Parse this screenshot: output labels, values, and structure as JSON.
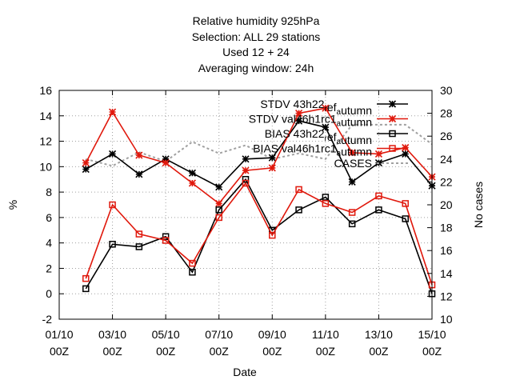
{
  "chart_data": {
    "type": "line",
    "title_lines": [
      "Relative humidity 925hPa",
      "Selection: ALL      29 stations",
      "Used  12  + 24",
      "Averaging window: 24h"
    ],
    "xlabel": "Date",
    "ylabel": "%",
    "y2label": "No cases",
    "x_ticks": [
      {
        "day": 1,
        "line1": "01/10",
        "line2": "00Z"
      },
      {
        "day": 3,
        "line1": "03/10",
        "line2": "00Z"
      },
      {
        "day": 5,
        "line1": "05/10",
        "line2": "00Z"
      },
      {
        "day": 7,
        "line1": "07/10",
        "line2": "00Z"
      },
      {
        "day": 9,
        "line1": "09/10",
        "line2": "00Z"
      },
      {
        "day": 11,
        "line1": "11/10",
        "line2": "00Z"
      },
      {
        "day": 13,
        "line1": "13/10",
        "line2": "00Z"
      },
      {
        "day": 15,
        "line1": "15/10",
        "line2": "00Z"
      }
    ],
    "xlim": [
      1,
      15
    ],
    "ylim": [
      -2,
      16
    ],
    "y_ticks": [
      -2,
      0,
      2,
      4,
      6,
      8,
      10,
      12,
      14,
      16
    ],
    "y2lim": [
      10,
      30
    ],
    "y2_ticks": [
      10,
      12,
      14,
      16,
      18,
      20,
      22,
      24,
      26,
      28,
      30
    ],
    "grid": true,
    "legend_position": "top-right",
    "series": [
      {
        "name": "STDV 43h22_ref_autumn",
        "legend_parts": [
          [
            "STDV 43h22",
            ""
          ],
          [
            "r",
            "sub"
          ],
          [
            "ef",
            ""
          ],
          [
            "a",
            "sub"
          ],
          [
            "utumn",
            ""
          ]
        ],
        "color": "#000000",
        "marker": "star",
        "dash": "",
        "x": [
          2,
          3,
          4,
          5,
          6,
          7,
          8,
          9,
          10,
          11,
          12,
          13,
          14,
          15
        ],
        "values": [
          9.8,
          11.0,
          9.4,
          10.6,
          9.5,
          8.4,
          10.6,
          10.7,
          13.6,
          13.1,
          8.8,
          10.3,
          11.0,
          8.5
        ]
      },
      {
        "name": "STDV val46h1rc1_autumn",
        "legend_parts": [
          [
            "STDV val46h1rc1",
            ""
          ],
          [
            "a",
            "sub"
          ],
          [
            "utumn",
            ""
          ]
        ],
        "color": "#e0180c",
        "marker": "star",
        "dash": "",
        "x": [
          2,
          3,
          4,
          5,
          6,
          7,
          8,
          9,
          10,
          11,
          12,
          13,
          14,
          15
        ],
        "values": [
          10.3,
          14.3,
          10.9,
          10.3,
          8.7,
          7.1,
          9.7,
          9.9,
          14.2,
          14.6,
          11.1,
          11.0,
          11.5,
          9.2
        ]
      },
      {
        "name": "BIAS 43h22_ref_autumn",
        "legend_parts": [
          [
            "BIAS 43h22",
            ""
          ],
          [
            "r",
            "sub"
          ],
          [
            "ef",
            ""
          ],
          [
            "a",
            "sub"
          ],
          [
            "utumn",
            ""
          ]
        ],
        "color": "#000000",
        "marker": "square",
        "dash": "",
        "x": [
          2,
          3,
          4,
          5,
          6,
          7,
          8,
          9,
          10,
          11,
          12,
          13,
          14,
          15
        ],
        "values": [
          0.4,
          3.9,
          3.7,
          4.5,
          1.7,
          6.6,
          9.0,
          5.0,
          6.6,
          7.6,
          5.5,
          6.6,
          5.9,
          0.0
        ]
      },
      {
        "name": "BIAS val46h1rc1_autumn",
        "legend_parts": [
          [
            "BIAS val46h1rc1",
            ""
          ],
          [
            "a",
            "sub"
          ],
          [
            "utumn",
            ""
          ]
        ],
        "color": "#e0180c",
        "marker": "square",
        "dash": "",
        "x": [
          2,
          3,
          4,
          5,
          6,
          7,
          8,
          9,
          10,
          11,
          12,
          13,
          14,
          15
        ],
        "values": [
          1.2,
          7.0,
          4.7,
          4.2,
          2.4,
          6.0,
          8.7,
          4.6,
          8.2,
          7.1,
          6.4,
          7.7,
          7.1,
          0.7
        ]
      },
      {
        "name": "CASES",
        "legend_parts": [
          [
            "CASES",
            ""
          ]
        ],
        "color": "#a0a0a0",
        "marker": "none",
        "dash": "3,3",
        "axis": "y2",
        "x": [
          2,
          3,
          4,
          5,
          6,
          7,
          8,
          9,
          10,
          11,
          12,
          13,
          14,
          15
        ],
        "values": [
          24.0,
          23.4,
          24.6,
          23.8,
          25.5,
          24.5,
          25.2,
          24.0,
          24.5,
          24.0,
          27.0,
          27.0,
          27.0,
          25.3
        ]
      }
    ]
  }
}
